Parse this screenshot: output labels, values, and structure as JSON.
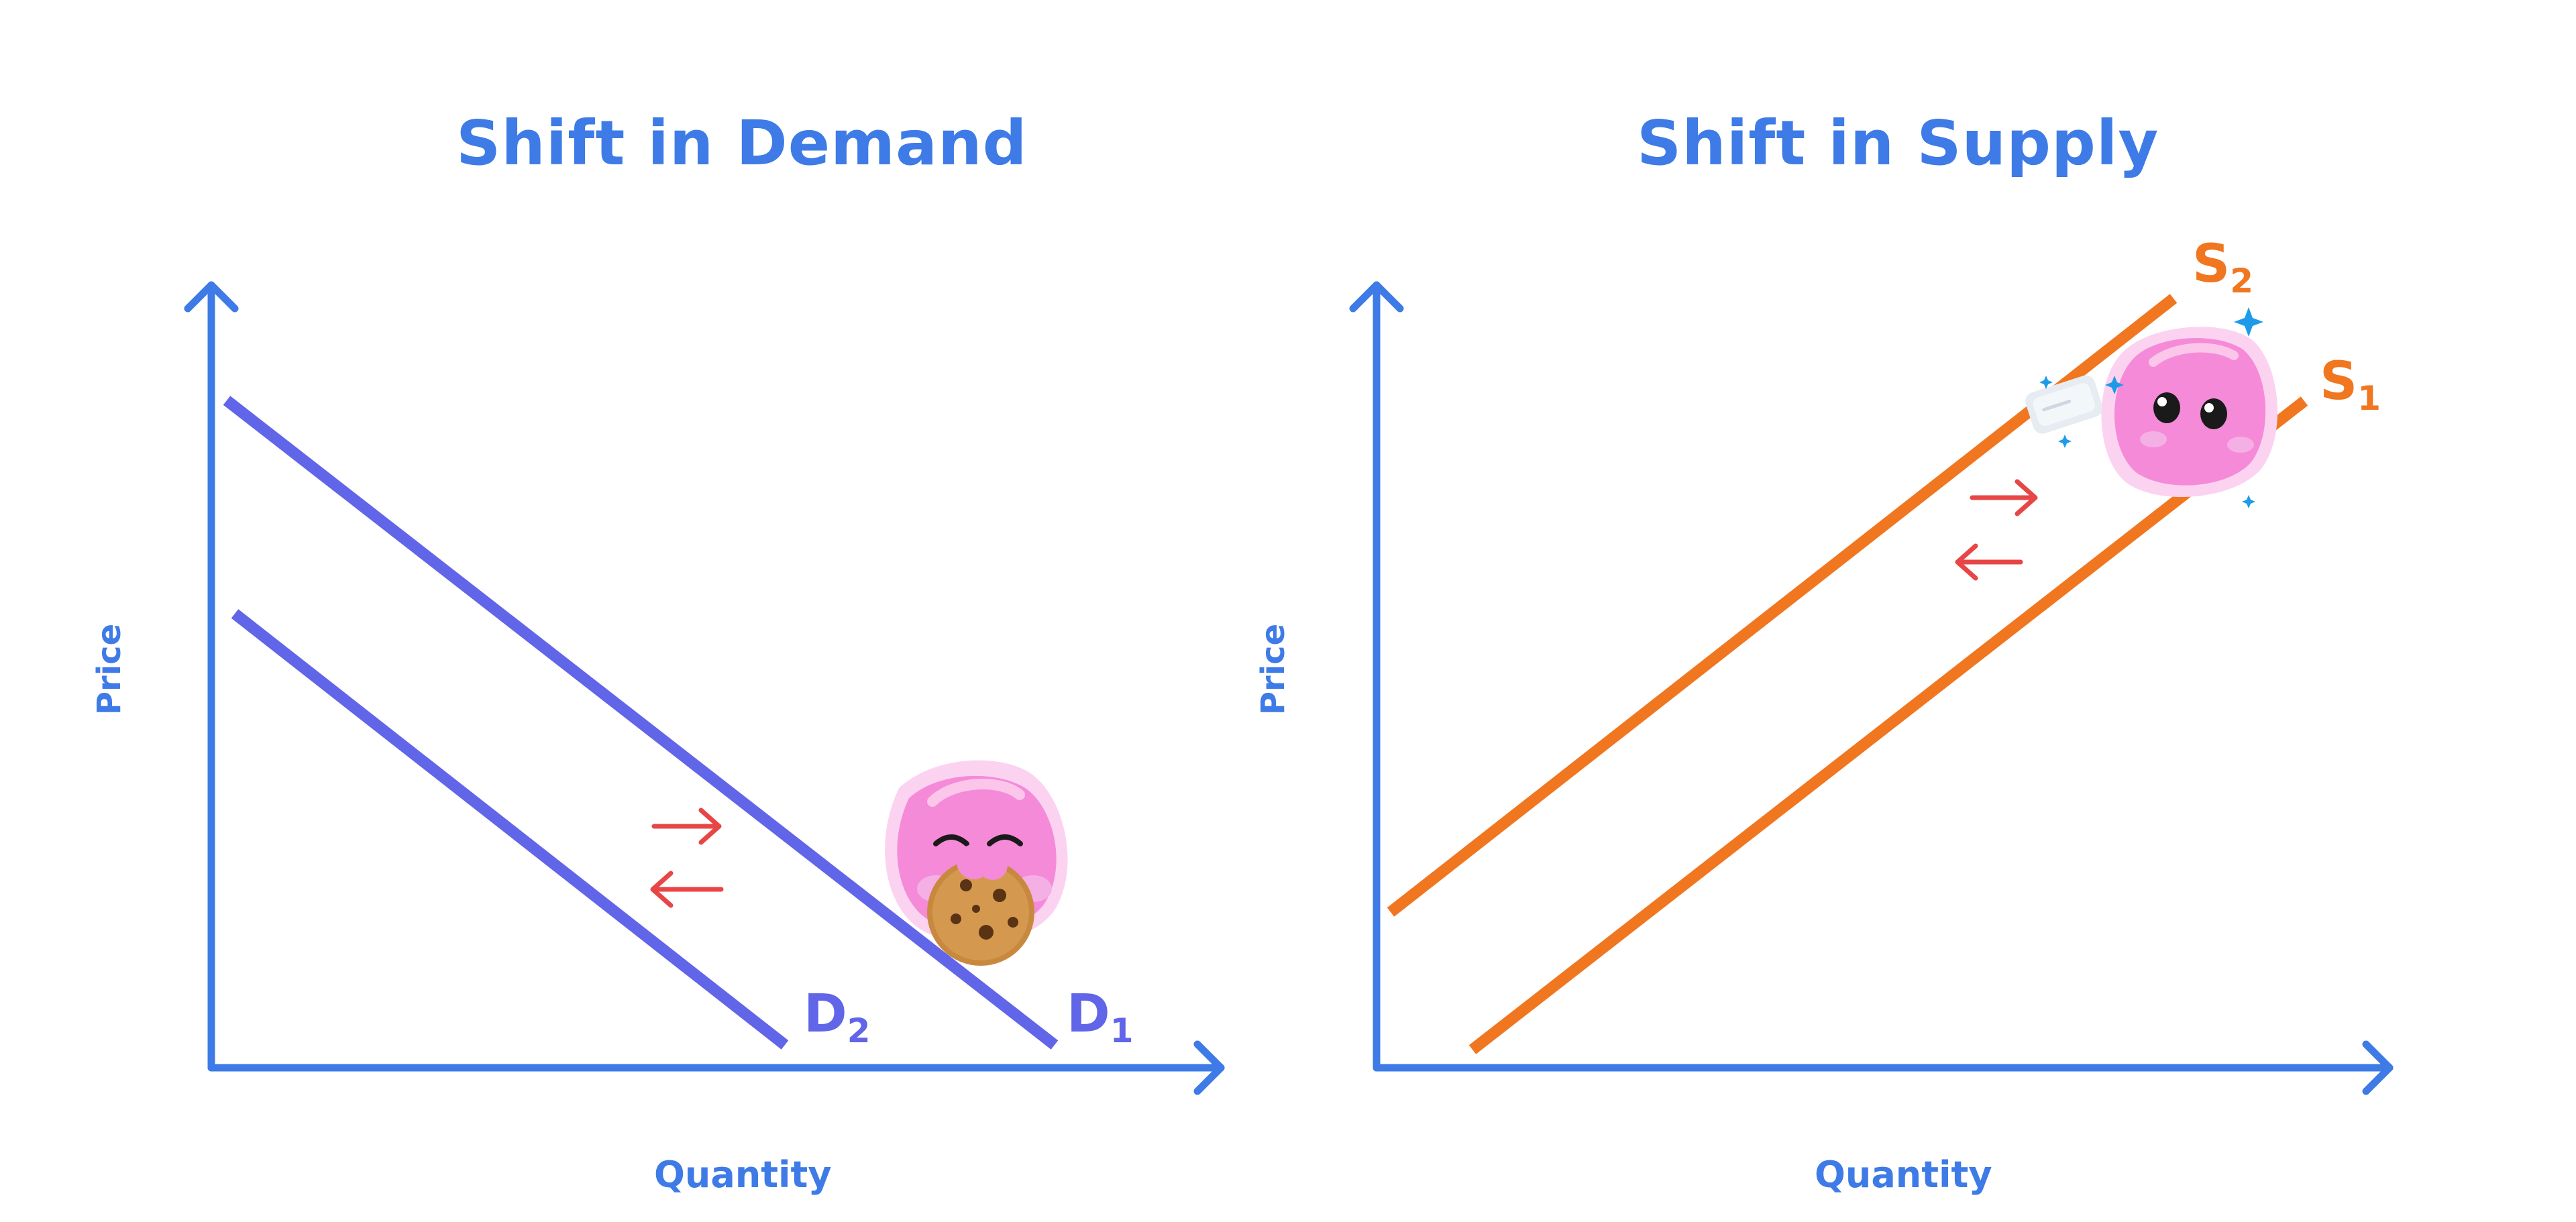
{
  "demand_panel": {
    "title": "Shift in Demand",
    "y_axis_label": "Price",
    "x_axis_label": "Quantity",
    "curves": [
      {
        "letter": "D",
        "sub": "1"
      },
      {
        "letter": "D",
        "sub": "2"
      }
    ],
    "colors": {
      "axis": "#3e7be6",
      "curve": "#6165e8",
      "arrow": "#e84646"
    },
    "mascot": "pink-blob-eating-cookie-icon"
  },
  "supply_panel": {
    "title": "Shift in Supply",
    "y_axis_label": "Price",
    "x_axis_label": "Quantity",
    "curves": [
      {
        "letter": "S",
        "sub": "1"
      },
      {
        "letter": "S",
        "sub": "2"
      }
    ],
    "colors": {
      "axis": "#3e7be6",
      "curve": "#f07620",
      "arrow": "#e84646"
    },
    "mascot": "pink-blob-with-eraser-icon"
  }
}
